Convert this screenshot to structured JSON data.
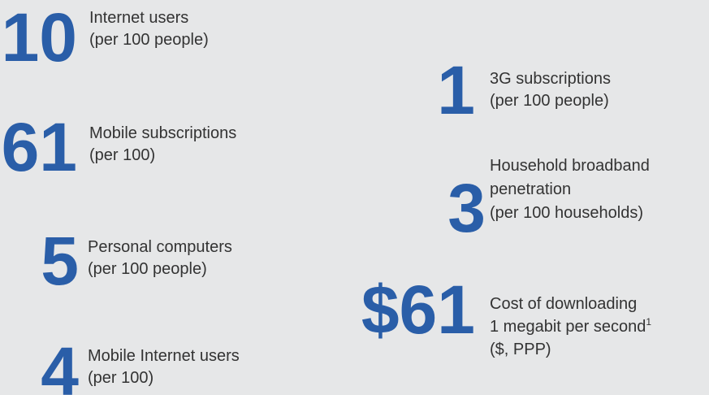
{
  "items": [
    {
      "figure": "10",
      "lines": [
        "Internet users",
        "(per 100 people)"
      ]
    },
    {
      "figure": "61",
      "lines": [
        "Mobile subscriptions",
        "(per 100)"
      ]
    },
    {
      "figure": "5",
      "lines": [
        "Personal computers",
        "(per 100 people)"
      ]
    },
    {
      "figure": "4",
      "lines": [
        "Mobile Internet users",
        "(per 100)"
      ]
    },
    {
      "figure": "1",
      "lines": [
        "3G subscriptions",
        "(per 100 people)"
      ]
    },
    {
      "figure": "3",
      "lines": [
        "Household broadband",
        "penetration",
        "(per 100 households)"
      ]
    },
    {
      "figure": "$61",
      "lines": [
        "Cost of downloading",
        "1 megabit per second",
        "($, PPP)"
      ],
      "note": "1"
    }
  ]
}
